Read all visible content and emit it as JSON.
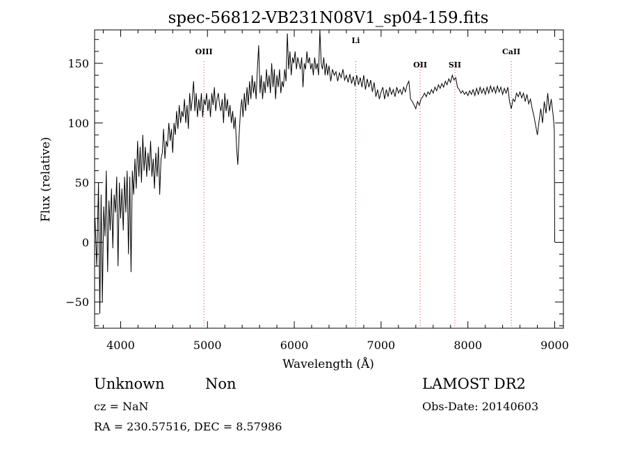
{
  "chart_data": {
    "type": "line",
    "title": "spec-56812-VB231N08V1_sp04-159.fits",
    "xlabel": "Wavelength (Å)",
    "ylabel": "Flux (relative)",
    "xlim": [
      3700,
      9100
    ],
    "ylim": [
      -72,
      178
    ],
    "x_ticks": [
      4000,
      5000,
      6000,
      7000,
      8000,
      9000
    ],
    "y_ticks": [
      -50,
      0,
      50,
      100,
      150
    ],
    "grid": false,
    "series": [
      {
        "color": "#000000",
        "points": [
          [
            3705,
            20
          ],
          [
            3725,
            -20
          ],
          [
            3745,
            50
          ],
          [
            3760,
            -60
          ],
          [
            3775,
            40
          ],
          [
            3790,
            -50
          ],
          [
            3805,
            30
          ],
          [
            3820,
            5
          ],
          [
            3835,
            60
          ],
          [
            3850,
            -25
          ],
          [
            3865,
            35
          ],
          [
            3880,
            10
          ],
          [
            3895,
            45
          ],
          [
            3910,
            -5
          ],
          [
            3925,
            40
          ],
          [
            3940,
            25
          ],
          [
            3955,
            55
          ],
          [
            3970,
            -20
          ],
          [
            3985,
            50
          ],
          [
            4000,
            20
          ],
          [
            4015,
            45
          ],
          [
            4030,
            10
          ],
          [
            4045,
            55
          ],
          [
            4060,
            25
          ],
          [
            4075,
            60
          ],
          [
            4090,
            -10
          ],
          [
            4105,
            55
          ],
          [
            4120,
            -25
          ],
          [
            4135,
            60
          ],
          [
            4150,
            40
          ],
          [
            4165,
            70
          ],
          [
            4180,
            45
          ],
          [
            4195,
            85
          ],
          [
            4210,
            55
          ],
          [
            4225,
            80
          ],
          [
            4240,
            50
          ],
          [
            4255,
            90
          ],
          [
            4270,
            60
          ],
          [
            4285,
            80
          ],
          [
            4300,
            55
          ],
          [
            4315,
            75
          ],
          [
            4330,
            60
          ],
          [
            4345,
            85
          ],
          [
            4360,
            55
          ],
          [
            4375,
            70
          ],
          [
            4390,
            45
          ],
          [
            4405,
            75
          ],
          [
            4420,
            55
          ],
          [
            4435,
            80
          ],
          [
            4450,
            40
          ],
          [
            4465,
            70
          ],
          [
            4480,
            75
          ],
          [
            4495,
            95
          ],
          [
            4510,
            70
          ],
          [
            4525,
            85
          ],
          [
            4540,
            80
          ],
          [
            4555,
            100
          ],
          [
            4570,
            85
          ],
          [
            4585,
            95
          ],
          [
            4600,
            75
          ],
          [
            4615,
            100
          ],
          [
            4630,
            90
          ],
          [
            4645,
            110
          ],
          [
            4660,
            95
          ],
          [
            4675,
            115
          ],
          [
            4690,
            100
          ],
          [
            4705,
            110
          ],
          [
            4720,
            105
          ],
          [
            4735,
            120
          ],
          [
            4750,
            100
          ],
          [
            4765,
            115
          ],
          [
            4780,
            95
          ],
          [
            4795,
            125
          ],
          [
            4810,
            110
          ],
          [
            4825,
            120
          ],
          [
            4840,
            135
          ],
          [
            4855,
            110
          ],
          [
            4870,
            125
          ],
          [
            4885,
            105
          ],
          [
            4900,
            120
          ],
          [
            4915,
            110
          ],
          [
            4930,
            125
          ],
          [
            4945,
            105
          ],
          [
            4960,
            120
          ],
          [
            4975,
            115
          ],
          [
            4990,
            125
          ],
          [
            5005,
            110
          ],
          [
            5020,
            120
          ],
          [
            5035,
            105
          ],
          [
            5050,
            125
          ],
          [
            5065,
            115
          ],
          [
            5080,
            130
          ],
          [
            5095,
            110
          ],
          [
            5110,
            120
          ],
          [
            5125,
            125
          ],
          [
            5140,
            115
          ],
          [
            5155,
            110
          ],
          [
            5170,
            120
          ],
          [
            5185,
            100
          ],
          [
            5200,
            125
          ],
          [
            5215,
            110
          ],
          [
            5230,
            120
          ],
          [
            5245,
            105
          ],
          [
            5260,
            115
          ],
          [
            5275,
            100
          ],
          [
            5290,
            110
          ],
          [
            5305,
            95
          ],
          [
            5320,
            105
          ],
          [
            5335,
            80
          ],
          [
            5350,
            65
          ],
          [
            5365,
            90
          ],
          [
            5380,
            110
          ],
          [
            5395,
            120
          ],
          [
            5410,
            105
          ],
          [
            5425,
            125
          ],
          [
            5440,
            110
          ],
          [
            5455,
            130
          ],
          [
            5470,
            115
          ],
          [
            5485,
            135
          ],
          [
            5500,
            120
          ],
          [
            5515,
            140
          ],
          [
            5530,
            125
          ],
          [
            5545,
            135
          ],
          [
            5560,
            120
          ],
          [
            5575,
            145
          ],
          [
            5590,
            165
          ],
          [
            5605,
            125
          ],
          [
            5620,
            140
          ],
          [
            5635,
            120
          ],
          [
            5650,
            135
          ],
          [
            5665,
            125
          ],
          [
            5680,
            145
          ],
          [
            5695,
            130
          ],
          [
            5710,
            140
          ],
          [
            5725,
            125
          ],
          [
            5740,
            150
          ],
          [
            5755,
            130
          ],
          [
            5770,
            145
          ],
          [
            5785,
            120
          ],
          [
            5800,
            140
          ],
          [
            5815,
            130
          ],
          [
            5830,
            145
          ],
          [
            5845,
            125
          ],
          [
            5860,
            135
          ],
          [
            5875,
            130
          ],
          [
            5890,
            145
          ],
          [
            5905,
            135
          ],
          [
            5920,
            175
          ],
          [
            5935,
            145
          ],
          [
            5950,
            160
          ],
          [
            5965,
            140
          ],
          [
            5980,
            155
          ],
          [
            5995,
            150
          ],
          [
            6010,
            160
          ],
          [
            6025,
            145
          ],
          [
            6040,
            155
          ],
          [
            6055,
            150
          ],
          [
            6070,
            145
          ],
          [
            6085,
            155
          ],
          [
            6100,
            130
          ],
          [
            6115,
            150
          ],
          [
            6130,
            145
          ],
          [
            6145,
            160
          ],
          [
            6160,
            150
          ],
          [
            6175,
            155
          ],
          [
            6190,
            145
          ],
          [
            6205,
            150
          ],
          [
            6220,
            140
          ],
          [
            6235,
            155
          ],
          [
            6250,
            145
          ],
          [
            6265,
            150
          ],
          [
            6280,
            140
          ],
          [
            6295,
            178
          ],
          [
            6310,
            150
          ],
          [
            6325,
            145
          ],
          [
            6340,
            155
          ],
          [
            6355,
            140
          ],
          [
            6370,
            150
          ],
          [
            6385,
            140
          ],
          [
            6400,
            148
          ],
          [
            6420,
            135
          ],
          [
            6440,
            145
          ],
          [
            6460,
            140
          ],
          [
            6480,
            143
          ],
          [
            6500,
            135
          ],
          [
            6520,
            142
          ],
          [
            6540,
            138
          ],
          [
            6560,
            145
          ],
          [
            6580,
            136
          ],
          [
            6600,
            140
          ],
          [
            6620,
            134
          ],
          [
            6640,
            141
          ],
          [
            6660,
            133
          ],
          [
            6680,
            139
          ],
          [
            6700,
            131
          ],
          [
            6720,
            140
          ],
          [
            6740,
            132
          ],
          [
            6760,
            138
          ],
          [
            6780,
            130
          ],
          [
            6800,
            140
          ],
          [
            6820,
            128
          ],
          [
            6840,
            137
          ],
          [
            6860,
            130
          ],
          [
            6880,
            136
          ],
          [
            6900,
            126
          ],
          [
            6920,
            134
          ],
          [
            6940,
            122
          ],
          [
            6960,
            128
          ],
          [
            6980,
            120
          ],
          [
            7000,
            126
          ],
          [
            7020,
            130
          ],
          [
            7040,
            120
          ],
          [
            7060,
            128
          ],
          [
            7080,
            122
          ],
          [
            7100,
            130
          ],
          [
            7120,
            124
          ],
          [
            7140,
            128
          ],
          [
            7160,
            122
          ],
          [
            7180,
            130
          ],
          [
            7200,
            125
          ],
          [
            7220,
            128
          ],
          [
            7240,
            124
          ],
          [
            7260,
            130
          ],
          [
            7280,
            126
          ],
          [
            7300,
            132
          ],
          [
            7320,
            135
          ],
          [
            7340,
            120
          ],
          [
            7360,
            118
          ],
          [
            7380,
            115
          ],
          [
            7400,
            112
          ],
          [
            7420,
            118
          ],
          [
            7440,
            115
          ],
          [
            7460,
            120
          ],
          [
            7480,
            122
          ],
          [
            7500,
            125
          ],
          [
            7520,
            122
          ],
          [
            7540,
            126
          ],
          [
            7560,
            124
          ],
          [
            7580,
            128
          ],
          [
            7600,
            125
          ],
          [
            7620,
            130
          ],
          [
            7640,
            127
          ],
          [
            7660,
            132
          ],
          [
            7680,
            129
          ],
          [
            7700,
            133
          ],
          [
            7720,
            130
          ],
          [
            7740,
            135
          ],
          [
            7760,
            132
          ],
          [
            7780,
            137
          ],
          [
            7800,
            134
          ],
          [
            7820,
            140
          ],
          [
            7840,
            136
          ],
          [
            7860,
            138
          ],
          [
            7880,
            130
          ],
          [
            7900,
            128
          ],
          [
            7920,
            125
          ],
          [
            7940,
            127
          ],
          [
            7960,
            124
          ],
          [
            7980,
            126
          ],
          [
            8000,
            123
          ],
          [
            8020,
            127
          ],
          [
            8040,
            124
          ],
          [
            8060,
            128
          ],
          [
            8080,
            123
          ],
          [
            8100,
            129
          ],
          [
            8120,
            124
          ],
          [
            8140,
            130
          ],
          [
            8160,
            125
          ],
          [
            8180,
            129
          ],
          [
            8200,
            124
          ],
          [
            8220,
            130
          ],
          [
            8240,
            125
          ],
          [
            8260,
            131
          ],
          [
            8280,
            126
          ],
          [
            8300,
            130
          ],
          [
            8320,
            125
          ],
          [
            8340,
            131
          ],
          [
            8360,
            126
          ],
          [
            8380,
            130
          ],
          [
            8400,
            124
          ],
          [
            8420,
            129
          ],
          [
            8440,
            125
          ],
          [
            8460,
            130
          ],
          [
            8480,
            118
          ],
          [
            8500,
            112
          ],
          [
            8520,
            120
          ],
          [
            8540,
            118
          ],
          [
            8560,
            125
          ],
          [
            8580,
            122
          ],
          [
            8600,
            126
          ],
          [
            8620,
            121
          ],
          [
            8640,
            125
          ],
          [
            8660,
            118
          ],
          [
            8680,
            124
          ],
          [
            8700,
            116
          ],
          [
            8720,
            120
          ],
          [
            8740,
            112
          ],
          [
            8760,
            106
          ],
          [
            8780,
            98
          ],
          [
            8800,
            90
          ],
          [
            8820,
            102
          ],
          [
            8840,
            112
          ],
          [
            8860,
            100
          ],
          [
            8880,
            118
          ],
          [
            8900,
            108
          ],
          [
            8920,
            125
          ],
          [
            8940,
            110
          ],
          [
            8960,
            120
          ],
          [
            8980,
            108
          ],
          [
            8995,
            95
          ],
          [
            9000,
            0
          ]
        ]
      }
    ],
    "annotations": [
      {
        "label": "OIII",
        "x": 4959
      },
      {
        "label": "Li",
        "x": 6708
      },
      {
        "label": "OII",
        "x": 7450
      },
      {
        "label": "SII",
        "x": 7850
      },
      {
        "label": "CaII",
        "x": 8500
      }
    ]
  },
  "info": {
    "class": "Unknown",
    "subclass": "Non",
    "survey": "LAMOST DR2",
    "cz": "cz = NaN",
    "obs_date": "Obs-Date: 20140603",
    "coords": "RA = 230.57516, DEC =    8.57986"
  }
}
